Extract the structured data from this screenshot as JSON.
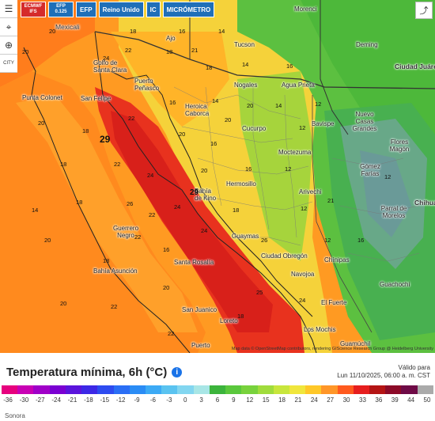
{
  "toolbar": {
    "model_top": "ECMWF",
    "model_bottom": "IFS",
    "res_top": "EFP",
    "res_bottom": "0.125",
    "efp": "EFP",
    "uk": "Reino Unido",
    "ic": "IC",
    "micro": "MICRÓMETRO"
  },
  "controls": {
    "city": "CITY"
  },
  "cities": [
    "Mexicali",
    "Tucson",
    "Morenci",
    "Deming",
    "Ciudad Juárez",
    "Golfo de Santa Clara",
    "Puerto Peñasco",
    "Punta Colonet",
    "San Felipe",
    "Nogales",
    "Agua Prieta",
    "Heroica Caborca",
    "Cucurpo",
    "Bavispe",
    "Nuevo Casas Grandes",
    "Moctezuma",
    "Flores Magón",
    "Gómez Farías",
    "Hermosillo",
    "Arivechi",
    "Bahía de Kino",
    "Chihua",
    "Parral de Morelos",
    "Guerrero Negro",
    "Guaymas",
    "Ciudad Obregón",
    "Santa Rosalía",
    "Chínipas",
    "Bahía Asunción",
    "Navojoa",
    "Guachochi",
    "El Fuerte",
    "San Juanico",
    "Loreto",
    "Los Mochis",
    "Puerto",
    "Guamúchil",
    "Ajo"
  ],
  "numbers": [
    "20",
    "18",
    "16",
    "14",
    "20",
    "24",
    "22",
    "18",
    "21",
    "14",
    "18",
    "16",
    "12",
    "20",
    "18",
    "16",
    "14",
    "22",
    "20",
    "16",
    "12",
    "29",
    "22",
    "18",
    "20",
    "24",
    "16",
    "12",
    "18",
    "14",
    "20",
    "26",
    "24",
    "18",
    "12",
    "16",
    "22",
    "24",
    "26",
    "20",
    "18",
    "22",
    "25",
    "24",
    "20",
    "18",
    "22",
    "29",
    "20",
    "14",
    "12",
    "20",
    "22",
    "21",
    "16",
    "12"
  ],
  "attribution": "Map data © OpenStreetMap contributors, rendering GIScience Research Group @ Heidelberg University",
  "legend": {
    "title": "Temperatura mínima, 6h (°C)",
    "valid_label": "Válido para",
    "valid_date": "Lun 11/10/2025, 06:00 a. m. CST",
    "ticks": [
      "-36",
      "-30",
      "-27",
      "-24",
      "-21",
      "-18",
      "-15",
      "-12",
      "-9",
      "-6",
      "-3",
      "0",
      "3",
      "6",
      "9",
      "12",
      "15",
      "18",
      "21",
      "24",
      "27",
      "30",
      "33",
      "36",
      "39",
      "44",
      "50"
    ],
    "colors": [
      "#e6007e",
      "#c800b4",
      "#a000c8",
      "#7a00d2",
      "#5a14dc",
      "#3c28e6",
      "#2d4bf0",
      "#2a6ef5",
      "#2a8cf5",
      "#3caaf5",
      "#5ac3f0",
      "#82d6f0",
      "#a8e6e6",
      "#3cb43c",
      "#5ac83c",
      "#78d23c",
      "#a0dc3c",
      "#c8e63c",
      "#f0e63c",
      "#ffc828",
      "#ff9628",
      "#ff5a1e",
      "#e61e1e",
      "#b41414",
      "#8c0a28",
      "#6e0a46",
      "#aaaaaa"
    ],
    "region": "Sonora"
  }
}
